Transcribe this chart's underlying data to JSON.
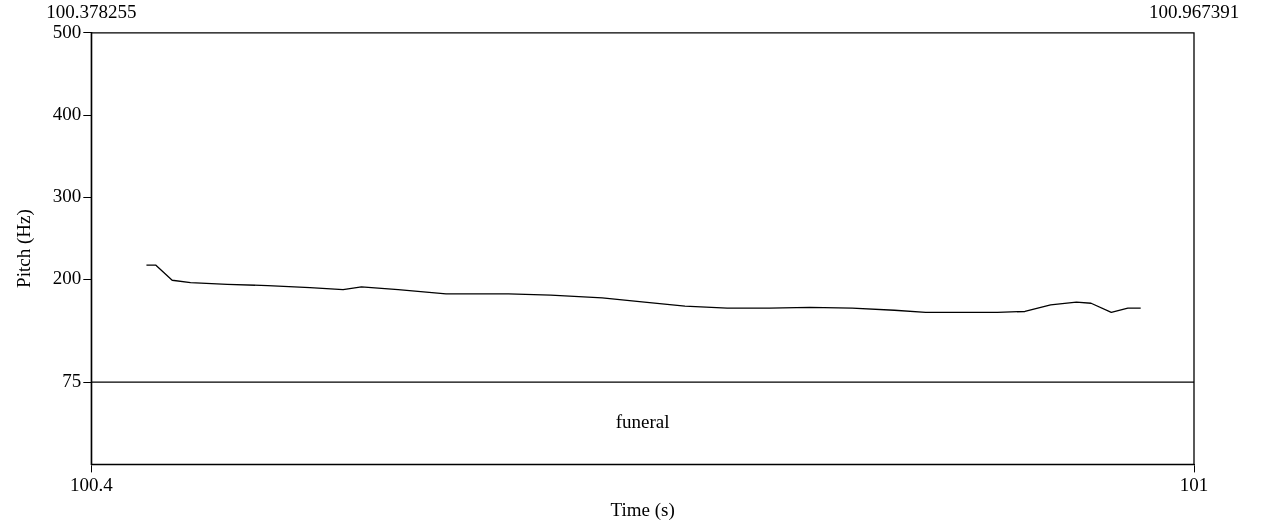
{
  "chart_data": {
    "type": "line",
    "xlabel": "Time (s)",
    "ylabel": "Pitch (Hz)",
    "xlim": [
      100.4,
      101
    ],
    "xticks": [
      100.4,
      101
    ],
    "x2lim": [
      100.378255,
      100.967391
    ],
    "x2ticks": [
      100.378255,
      100.967391
    ],
    "ylim": [
      -25,
      500
    ],
    "yticks": [
      75,
      200,
      300,
      400,
      500
    ],
    "grid": false,
    "legend": false,
    "marker": "none",
    "line_style": "solid",
    "series": [
      {
        "color": "#000000",
        "x": [
          100.43,
          100.435,
          100.444,
          100.454,
          100.474,
          100.496,
          100.519,
          100.537,
          100.547,
          100.567,
          100.593,
          100.627,
          100.65,
          100.678,
          100.701,
          100.723,
          100.746,
          100.769,
          100.791,
          100.814,
          100.837,
          100.854,
          100.876,
          100.893,
          100.908,
          100.922,
          100.936,
          100.944,
          100.955,
          100.964,
          100.971
        ],
        "values": [
          217.5,
          217.5,
          199,
          196,
          194,
          192.5,
          190,
          187.5,
          191,
          187.5,
          182.5,
          182.5,
          181,
          177.5,
          172.5,
          167.5,
          165,
          165,
          166,
          165,
          162.5,
          160,
          160,
          160,
          161,
          169,
          172.5,
          171,
          160,
          165,
          165
        ]
      }
    ],
    "ref_lines": [
      {
        "axis": "y",
        "value": 75,
        "color": "#000000"
      }
    ],
    "annotations": [
      "funeral"
    ]
  }
}
